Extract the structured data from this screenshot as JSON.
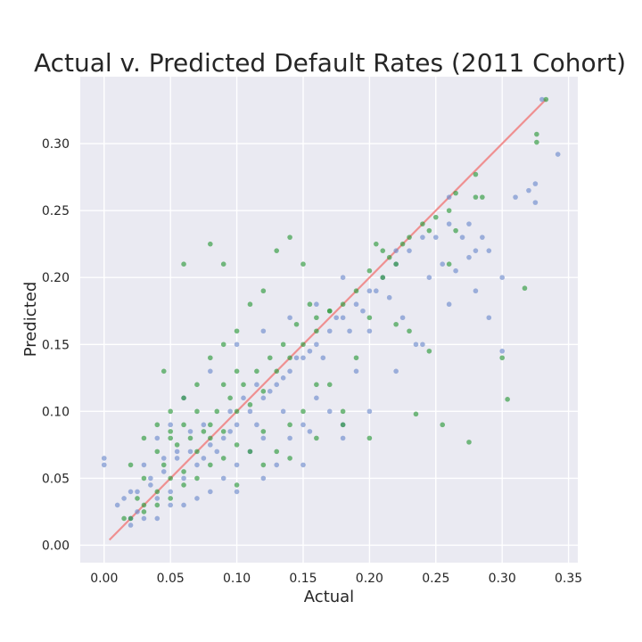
{
  "chart_data": {
    "type": "scatter",
    "title": "Actual v. Predicted Default Rates (2011 Cohort)",
    "xlabel": "Actual",
    "ylabel": "Predicted",
    "xlim": [
      -0.018,
      0.357
    ],
    "ylim": [
      -0.013,
      0.35
    ],
    "x_ticks": [
      "0.00",
      "0.05",
      "0.10",
      "0.15",
      "0.20",
      "0.25",
      "0.30",
      "0.35"
    ],
    "y_ticks": [
      "0.00",
      "0.05",
      "0.10",
      "0.15",
      "0.20",
      "0.25",
      "0.30"
    ],
    "grid": true,
    "legend": "none",
    "colors": {
      "background": "#eaeaf2",
      "series_blue": "#6f8ccc",
      "series_green": "#2e9a3c",
      "reference_line": "#f08080"
    },
    "reference_line": {
      "x": [
        0.004,
        0.333
      ],
      "y": [
        0.004,
        0.333
      ]
    },
    "series": [
      {
        "color": "blue",
        "points": [
          [
            0.03,
            0.02
          ],
          [
            0.04,
            0.035
          ],
          [
            0.05,
            0.04
          ],
          [
            0.06,
            0.05
          ],
          [
            0.07,
            0.06
          ],
          [
            0.08,
            0.075
          ],
          [
            0.09,
            0.08
          ],
          [
            0.1,
            0.09
          ],
          [
            0.11,
            0.1
          ],
          [
            0.12,
            0.11
          ],
          [
            0.13,
            0.12
          ],
          [
            0.14,
            0.13
          ],
          [
            0.15,
            0.14
          ],
          [
            0.16,
            0.15
          ],
          [
            0.17,
            0.16
          ],
          [
            0.18,
            0.17
          ],
          [
            0.19,
            0.18
          ],
          [
            0.2,
            0.19
          ],
          [
            0.21,
            0.2
          ],
          [
            0.22,
            0.21
          ],
          [
            0.23,
            0.22
          ],
          [
            0.24,
            0.23
          ],
          [
            0.25,
            0.23
          ],
          [
            0.26,
            0.24
          ],
          [
            0.27,
            0.23
          ],
          [
            0.28,
            0.22
          ],
          [
            0.29,
            0.22
          ],
          [
            0.3,
            0.2
          ],
          [
            0.31,
            0.26
          ],
          [
            0.325,
            0.27
          ],
          [
            0.342,
            0.292
          ],
          [
            0.33,
            0.333
          ],
          [
            0.32,
            0.265
          ],
          [
            0.325,
            0.256
          ],
          [
            0.29,
            0.17
          ],
          [
            0.275,
            0.24
          ],
          [
            0.26,
            0.26
          ],
          [
            0.2,
            0.16
          ],
          [
            0.19,
            0.13
          ],
          [
            0.18,
            0.09
          ],
          [
            0.17,
            0.1
          ],
          [
            0.16,
            0.11
          ],
          [
            0.15,
            0.09
          ],
          [
            0.14,
            0.08
          ],
          [
            0.13,
            0.06
          ],
          [
            0.12,
            0.08
          ],
          [
            0.11,
            0.07
          ],
          [
            0.1,
            0.06
          ],
          [
            0.09,
            0.05
          ],
          [
            0.08,
            0.04
          ],
          [
            0.07,
            0.035
          ],
          [
            0.06,
            0.03
          ],
          [
            0.05,
            0.03
          ],
          [
            0.04,
            0.02
          ],
          [
            0.02,
            0.015
          ],
          [
            0.0,
            0.06
          ],
          [
            0.0,
            0.065
          ],
          [
            0.01,
            0.03
          ],
          [
            0.02,
            0.02
          ],
          [
            0.025,
            0.025
          ],
          [
            0.035,
            0.045
          ],
          [
            0.045,
            0.055
          ],
          [
            0.055,
            0.065
          ],
          [
            0.065,
            0.07
          ],
          [
            0.075,
            0.065
          ],
          [
            0.085,
            0.07
          ],
          [
            0.095,
            0.1
          ],
          [
            0.105,
            0.11
          ],
          [
            0.115,
            0.12
          ],
          [
            0.125,
            0.115
          ],
          [
            0.135,
            0.125
          ],
          [
            0.145,
            0.14
          ],
          [
            0.155,
            0.145
          ],
          [
            0.165,
            0.14
          ],
          [
            0.175,
            0.17
          ],
          [
            0.185,
            0.16
          ],
          [
            0.195,
            0.175
          ],
          [
            0.205,
            0.19
          ],
          [
            0.215,
            0.185
          ],
          [
            0.225,
            0.17
          ],
          [
            0.235,
            0.15
          ],
          [
            0.245,
            0.2
          ],
          [
            0.255,
            0.21
          ],
          [
            0.265,
            0.205
          ],
          [
            0.275,
            0.215
          ],
          [
            0.285,
            0.23
          ],
          [
            0.22,
            0.22
          ],
          [
            0.18,
            0.2
          ],
          [
            0.16,
            0.18
          ],
          [
            0.14,
            0.17
          ],
          [
            0.12,
            0.16
          ],
          [
            0.1,
            0.15
          ],
          [
            0.08,
            0.13
          ],
          [
            0.06,
            0.11
          ],
          [
            0.05,
            0.09
          ],
          [
            0.04,
            0.08
          ],
          [
            0.03,
            0.06
          ],
          [
            0.02,
            0.04
          ],
          [
            0.1,
            0.04
          ],
          [
            0.12,
            0.05
          ],
          [
            0.15,
            0.06
          ],
          [
            0.18,
            0.08
          ],
          [
            0.2,
            0.1
          ],
          [
            0.22,
            0.13
          ],
          [
            0.24,
            0.15
          ],
          [
            0.26,
            0.18
          ],
          [
            0.28,
            0.19
          ],
          [
            0.3,
            0.145
          ],
          [
            0.155,
            0.085
          ],
          [
            0.135,
            0.1
          ],
          [
            0.115,
            0.09
          ],
          [
            0.095,
            0.085
          ],
          [
            0.075,
            0.09
          ],
          [
            0.065,
            0.085
          ],
          [
            0.055,
            0.07
          ],
          [
            0.045,
            0.065
          ],
          [
            0.035,
            0.05
          ],
          [
            0.025,
            0.04
          ],
          [
            0.015,
            0.035
          ]
        ]
      },
      {
        "color": "green",
        "points": [
          [
            0.02,
            0.02
          ],
          [
            0.03,
            0.03
          ],
          [
            0.04,
            0.04
          ],
          [
            0.05,
            0.05
          ],
          [
            0.06,
            0.055
          ],
          [
            0.07,
            0.07
          ],
          [
            0.08,
            0.08
          ],
          [
            0.09,
            0.085
          ],
          [
            0.1,
            0.1
          ],
          [
            0.11,
            0.105
          ],
          [
            0.12,
            0.115
          ],
          [
            0.13,
            0.13
          ],
          [
            0.14,
            0.14
          ],
          [
            0.15,
            0.15
          ],
          [
            0.16,
            0.16
          ],
          [
            0.17,
            0.175
          ],
          [
            0.18,
            0.18
          ],
          [
            0.19,
            0.19
          ],
          [
            0.2,
            0.205
          ],
          [
            0.21,
            0.22
          ],
          [
            0.22,
            0.21
          ],
          [
            0.23,
            0.23
          ],
          [
            0.24,
            0.24
          ],
          [
            0.25,
            0.245
          ],
          [
            0.265,
            0.263
          ],
          [
            0.28,
            0.277
          ],
          [
            0.333,
            0.333
          ],
          [
            0.326,
            0.301
          ],
          [
            0.326,
            0.307
          ],
          [
            0.317,
            0.192
          ],
          [
            0.304,
            0.109
          ],
          [
            0.3,
            0.14
          ],
          [
            0.28,
            0.26
          ],
          [
            0.275,
            0.077
          ],
          [
            0.26,
            0.25
          ],
          [
            0.255,
            0.09
          ],
          [
            0.235,
            0.098
          ],
          [
            0.215,
            0.215
          ],
          [
            0.2,
            0.08
          ],
          [
            0.18,
            0.1
          ],
          [
            0.17,
            0.12
          ],
          [
            0.16,
            0.12
          ],
          [
            0.15,
            0.1
          ],
          [
            0.14,
            0.09
          ],
          [
            0.13,
            0.07
          ],
          [
            0.12,
            0.085
          ],
          [
            0.11,
            0.07
          ],
          [
            0.1,
            0.075
          ],
          [
            0.09,
            0.065
          ],
          [
            0.08,
            0.06
          ],
          [
            0.07,
            0.05
          ],
          [
            0.06,
            0.045
          ],
          [
            0.05,
            0.035
          ],
          [
            0.04,
            0.03
          ],
          [
            0.03,
            0.025
          ],
          [
            0.02,
            0.06
          ],
          [
            0.03,
            0.08
          ],
          [
            0.04,
            0.09
          ],
          [
            0.05,
            0.1
          ],
          [
            0.06,
            0.11
          ],
          [
            0.07,
            0.12
          ],
          [
            0.08,
            0.14
          ],
          [
            0.09,
            0.15
          ],
          [
            0.1,
            0.16
          ],
          [
            0.11,
            0.18
          ],
          [
            0.12,
            0.19
          ],
          [
            0.13,
            0.22
          ],
          [
            0.14,
            0.23
          ],
          [
            0.15,
            0.21
          ],
          [
            0.16,
            0.17
          ],
          [
            0.17,
            0.175
          ],
          [
            0.19,
            0.14
          ],
          [
            0.2,
            0.17
          ],
          [
            0.21,
            0.2
          ],
          [
            0.22,
            0.165
          ],
          [
            0.23,
            0.16
          ],
          [
            0.245,
            0.145
          ],
          [
            0.26,
            0.21
          ],
          [
            0.285,
            0.26
          ],
          [
            0.265,
            0.235
          ],
          [
            0.245,
            0.235
          ],
          [
            0.225,
            0.225
          ],
          [
            0.205,
            0.225
          ],
          [
            0.1,
            0.045
          ],
          [
            0.12,
            0.06
          ],
          [
            0.14,
            0.065
          ],
          [
            0.16,
            0.08
          ],
          [
            0.18,
            0.09
          ],
          [
            0.08,
            0.09
          ],
          [
            0.07,
            0.1
          ],
          [
            0.06,
            0.09
          ],
          [
            0.05,
            0.08
          ],
          [
            0.04,
            0.07
          ],
          [
            0.03,
            0.05
          ],
          [
            0.025,
            0.035
          ],
          [
            0.015,
            0.02
          ],
          [
            0.045,
            0.06
          ],
          [
            0.055,
            0.075
          ],
          [
            0.065,
            0.08
          ],
          [
            0.075,
            0.085
          ],
          [
            0.085,
            0.1
          ],
          [
            0.095,
            0.11
          ],
          [
            0.105,
            0.12
          ],
          [
            0.115,
            0.13
          ],
          [
            0.125,
            0.14
          ],
          [
            0.135,
            0.15
          ],
          [
            0.145,
            0.165
          ],
          [
            0.155,
            0.18
          ],
          [
            0.08,
            0.225
          ],
          [
            0.09,
            0.21
          ],
          [
            0.06,
            0.21
          ],
          [
            0.1,
            0.13
          ],
          [
            0.09,
            0.12
          ],
          [
            0.045,
            0.13
          ],
          [
            0.05,
            0.085
          ]
        ]
      }
    ]
  }
}
